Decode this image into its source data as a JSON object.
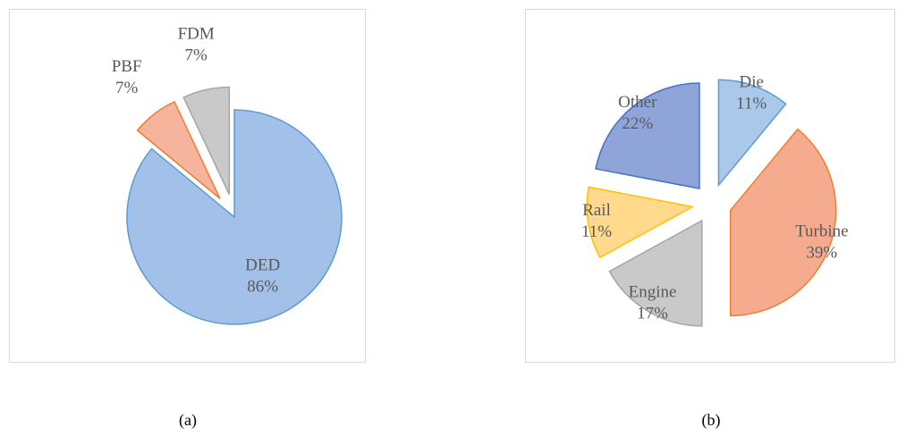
{
  "chart_data": [
    {
      "type": "pie",
      "caption": "(a)",
      "categories": [
        "DED",
        "PBF",
        "FDM"
      ],
      "values": [
        86,
        7,
        7
      ],
      "value_labels": [
        "86%",
        "7%",
        "7%"
      ],
      "colors": [
        "#a3c1e8",
        "#f5b49b",
        "#c9c9c9"
      ],
      "edge_colors": [
        "#5b9bd5",
        "#ed7d31",
        "#a5a5a5"
      ],
      "exploded": [
        false,
        true,
        true
      ]
    },
    {
      "type": "pie",
      "caption": "(b)",
      "categories": [
        "Die",
        "Turbine",
        "Engine",
        "Rail",
        "Other"
      ],
      "values": [
        11,
        39,
        17,
        11,
        22
      ],
      "value_labels": [
        "11%",
        "39%",
        "17%",
        "11%",
        "22%"
      ],
      "colors": [
        "#a9c8ea",
        "#f5ab8d",
        "#c9c9c9",
        "#ffd98c",
        "#8fa5da"
      ],
      "edge_colors": [
        "#5b9bd5",
        "#ed7d31",
        "#a5a5a5",
        "#ffc000",
        "#4472c4"
      ],
      "exploded": [
        true,
        true,
        true,
        true,
        true
      ]
    }
  ]
}
